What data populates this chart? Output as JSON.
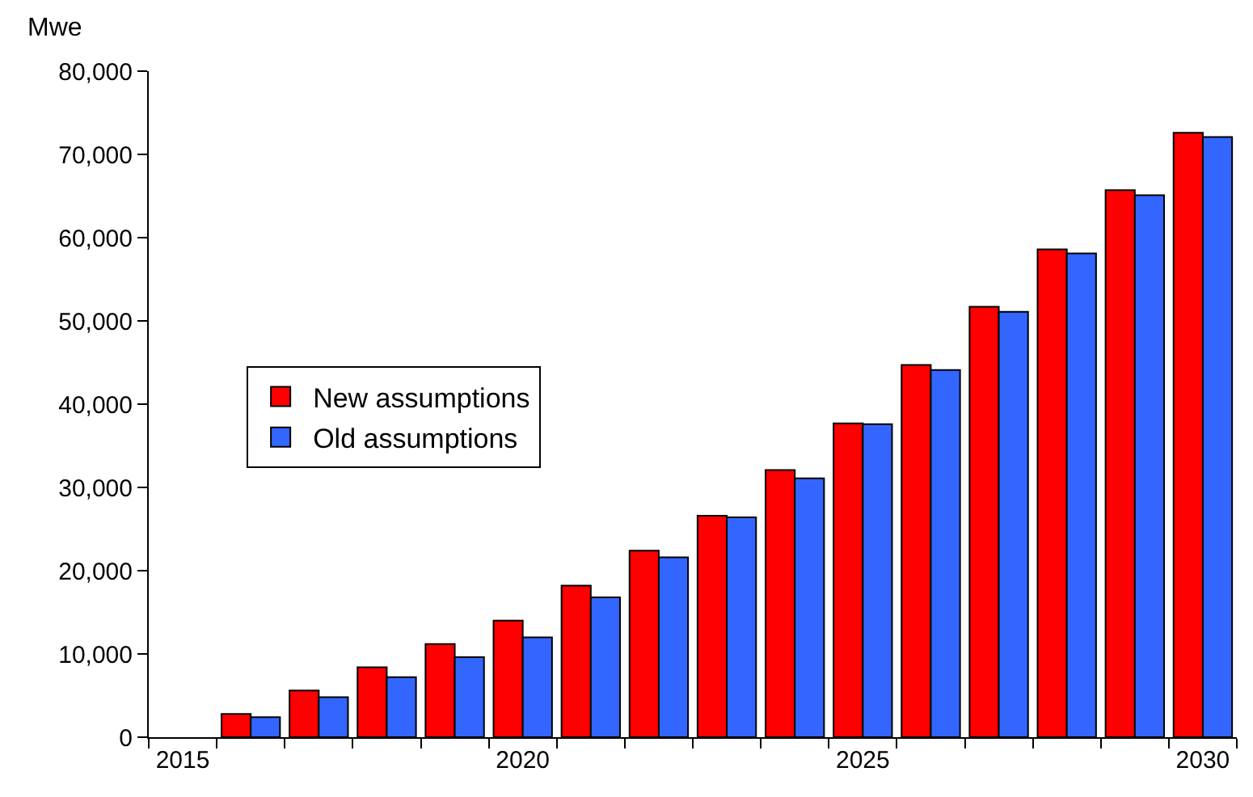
{
  "chart_data": {
    "type": "bar",
    "ylabel": "Mwe",
    "categories": [
      "2015",
      null,
      null,
      null,
      null,
      "2020",
      null,
      null,
      null,
      null,
      "2025",
      null,
      null,
      null,
      null,
      "2030"
    ],
    "series": [
      {
        "name": "New assumptions",
        "color": "#ff0000",
        "values": [
          null,
          2800,
          5600,
          8400,
          11200,
          14000,
          18200,
          22400,
          26600,
          32100,
          37700,
          44700,
          51700,
          58600,
          65700,
          72600
        ]
      },
      {
        "name": "Old assumptions",
        "color": "#3366ff",
        "values": [
          null,
          2400,
          4800,
          7200,
          9600,
          12000,
          16800,
          21600,
          26400,
          31100,
          37600,
          44100,
          51100,
          58100,
          65100,
          72100
        ]
      }
    ],
    "ylim": [
      0,
      80000
    ],
    "yticks": [
      {
        "value": 0,
        "label": "0"
      },
      {
        "value": 10000,
        "label": "10,000"
      },
      {
        "value": 20000,
        "label": "20,000"
      },
      {
        "value": 30000,
        "label": "30,000"
      },
      {
        "value": 40000,
        "label": "40,000"
      },
      {
        "value": 50000,
        "label": "50,000"
      },
      {
        "value": 60000,
        "label": "60,000"
      },
      {
        "value": 70000,
        "label": "70,000"
      },
      {
        "value": 80000,
        "label": "80,000"
      }
    ],
    "grid": false,
    "legend": "left"
  }
}
